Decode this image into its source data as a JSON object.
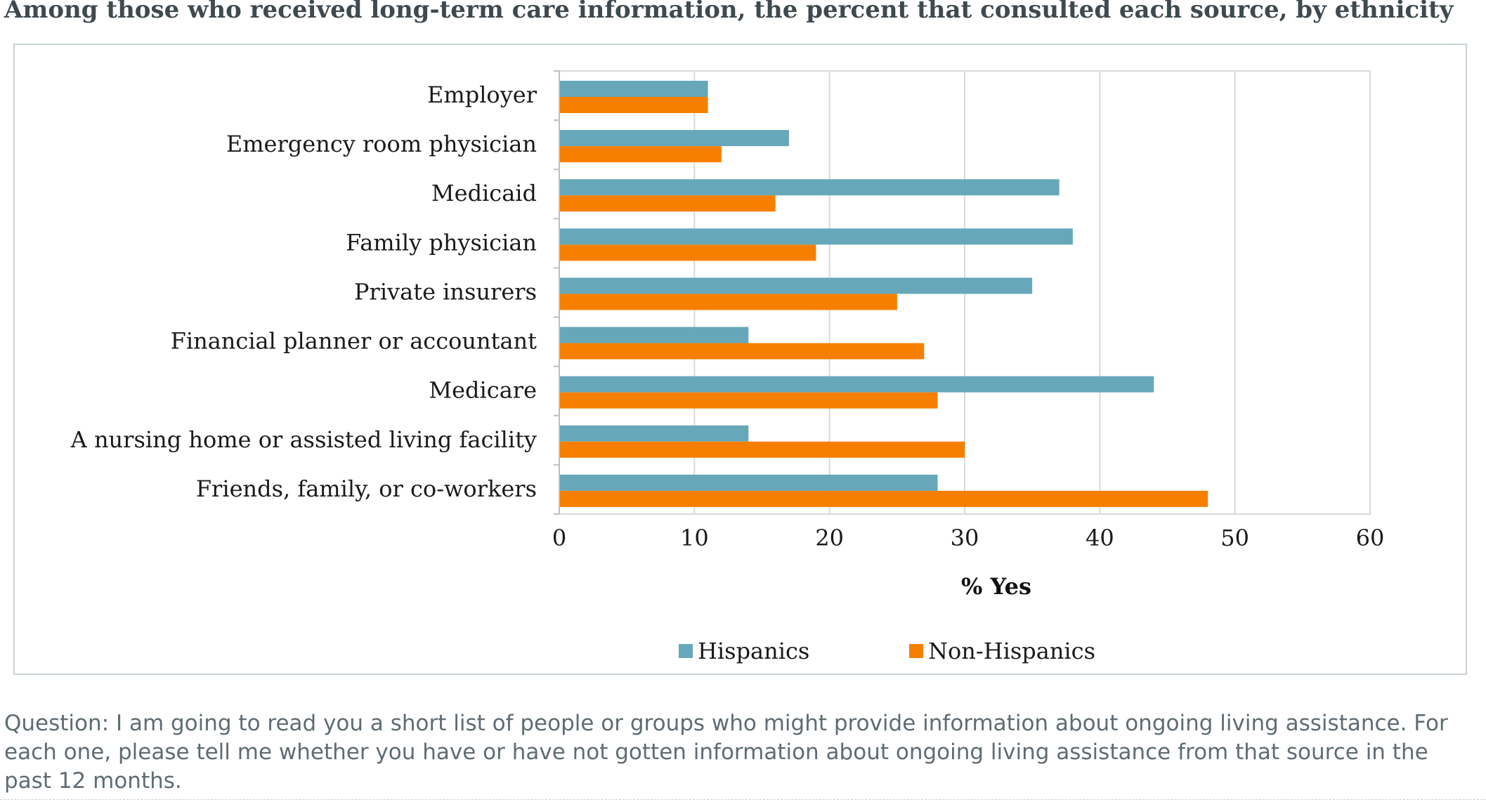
{
  "chart_data": {
    "type": "bar",
    "orientation": "horizontal",
    "title": "Among those who received long-term care information, the percent that consulted each source, by ethnicity",
    "xlabel": "% Yes",
    "ylabel": "",
    "xlim": [
      0,
      60
    ],
    "xticks": [
      0,
      10,
      20,
      30,
      40,
      50,
      60
    ],
    "grid": true,
    "legend_position": "bottom",
    "categories": [
      "Employer",
      "Emergency room physician",
      "Medicaid",
      "Family physician",
      "Private insurers",
      "Financial planner or accountant",
      "Medicare",
      "A nursing home or assisted living facility",
      "Friends, family, or co-workers"
    ],
    "series": [
      {
        "name": "Hispanics",
        "color": "#66a8ba",
        "values": [
          11,
          17,
          37,
          38,
          35,
          14,
          44,
          14,
          28
        ]
      },
      {
        "name": "Non-Hispanics",
        "color": "#f77f00",
        "values": [
          11,
          12,
          16,
          19,
          25,
          27,
          28,
          30,
          48
        ]
      }
    ]
  },
  "note": "Question: I am going to read you a short list of people or groups who might provide information about ongoing living assistance. For each one, please tell me whether you have or have not gotten information about ongoing living assistance from that source in the past 12 months."
}
